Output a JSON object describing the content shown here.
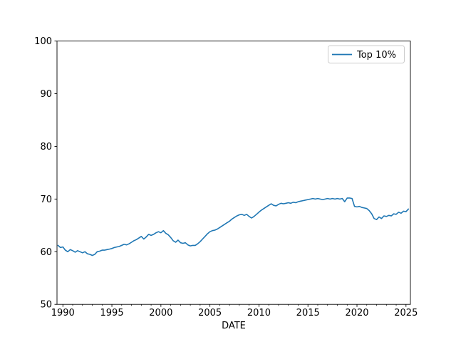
{
  "chart_data": {
    "type": "line",
    "title": "",
    "xlabel": "DATE",
    "ylabel": "",
    "xlim": [
      1989.4,
      2025.45
    ],
    "ylim": [
      50,
      100
    ],
    "x_ticks": [
      1990,
      1995,
      2000,
      2005,
      2010,
      2015,
      2020,
      2025
    ],
    "y_ticks": [
      50,
      60,
      70,
      80,
      90,
      100
    ],
    "x_minor_tick_step": 1,
    "grid": false,
    "legend_position": "upper right",
    "line_color": "#1f77b4",
    "axis_color": "#000000",
    "legend_border_color": "#cccccc",
    "background_color": "#ffffff",
    "series": [
      {
        "name": "Top 10%",
        "x": [
          1989.5,
          1989.75,
          1990.0,
          1990.25,
          1990.5,
          1990.75,
          1991.0,
          1991.25,
          1991.5,
          1991.75,
          1992.0,
          1992.25,
          1992.5,
          1992.75,
          1993.0,
          1993.25,
          1993.5,
          1993.75,
          1994.0,
          1994.25,
          1994.5,
          1994.75,
          1995.0,
          1995.25,
          1995.5,
          1995.75,
          1996.0,
          1996.25,
          1996.5,
          1996.75,
          1997.0,
          1997.25,
          1997.5,
          1997.75,
          1998.0,
          1998.25,
          1998.5,
          1998.75,
          1999.0,
          1999.25,
          1999.5,
          1999.75,
          2000.0,
          2000.25,
          2000.5,
          2000.75,
          2001.0,
          2001.25,
          2001.5,
          2001.75,
          2002.0,
          2002.25,
          2002.5,
          2002.75,
          2003.0,
          2003.25,
          2003.5,
          2003.75,
          2004.0,
          2004.25,
          2004.5,
          2004.75,
          2005.0,
          2005.25,
          2005.5,
          2005.75,
          2006.0,
          2006.25,
          2006.5,
          2006.75,
          2007.0,
          2007.25,
          2007.5,
          2007.75,
          2008.0,
          2008.25,
          2008.5,
          2008.75,
          2009.0,
          2009.25,
          2009.5,
          2009.75,
          2010.0,
          2010.25,
          2010.5,
          2010.75,
          2011.0,
          2011.25,
          2011.5,
          2011.75,
          2012.0,
          2012.25,
          2012.5,
          2012.75,
          2013.0,
          2013.25,
          2013.5,
          2013.75,
          2014.0,
          2014.25,
          2014.5,
          2014.75,
          2015.0,
          2015.25,
          2015.5,
          2015.75,
          2016.0,
          2016.25,
          2016.5,
          2016.75,
          2017.0,
          2017.25,
          2017.5,
          2017.75,
          2018.0,
          2018.25,
          2018.5,
          2018.75,
          2019.0,
          2019.25,
          2019.5,
          2019.75,
          2020.0,
          2020.25,
          2020.5,
          2020.75,
          2021.0,
          2021.25,
          2021.5,
          2021.75,
          2022.0,
          2022.25,
          2022.5,
          2022.75,
          2023.0,
          2023.25,
          2023.5,
          2023.75,
          2024.0,
          2024.25,
          2024.5,
          2024.75,
          2025.0,
          2025.25
        ],
        "values": [
          61.2,
          60.8,
          60.9,
          60.3,
          60.0,
          60.4,
          60.2,
          59.9,
          60.2,
          60.0,
          59.8,
          60.0,
          59.6,
          59.5,
          59.3,
          59.5,
          60.0,
          60.1,
          60.3,
          60.3,
          60.4,
          60.5,
          60.6,
          60.8,
          60.9,
          61.0,
          61.2,
          61.4,
          61.3,
          61.5,
          61.8,
          62.1,
          62.3,
          62.6,
          62.9,
          62.4,
          62.8,
          63.3,
          63.1,
          63.3,
          63.6,
          63.8,
          63.6,
          64.0,
          63.5,
          63.2,
          62.7,
          62.1,
          61.8,
          62.2,
          61.7,
          61.6,
          61.7,
          61.3,
          61.1,
          61.2,
          61.2,
          61.5,
          61.9,
          62.4,
          62.9,
          63.4,
          63.8,
          64.0,
          64.1,
          64.3,
          64.6,
          64.9,
          65.2,
          65.5,
          65.8,
          66.2,
          66.5,
          66.8,
          67.0,
          67.1,
          66.9,
          67.1,
          66.7,
          66.4,
          66.7,
          67.1,
          67.5,
          67.9,
          68.2,
          68.5,
          68.8,
          69.1,
          68.8,
          68.7,
          69.0,
          69.2,
          69.1,
          69.2,
          69.3,
          69.2,
          69.4,
          69.3,
          69.5,
          69.6,
          69.7,
          69.8,
          69.9,
          70.0,
          70.1,
          70.0,
          70.1,
          70.0,
          69.9,
          70.0,
          70.1,
          70.0,
          70.1,
          70.0,
          70.1,
          70.0,
          70.1,
          69.5,
          70.2,
          70.2,
          70.1,
          68.6,
          68.5,
          68.6,
          68.4,
          68.3,
          68.2,
          67.8,
          67.2,
          66.3,
          66.1,
          66.6,
          66.3,
          66.8,
          66.7,
          66.9,
          66.8,
          67.2,
          67.1,
          67.5,
          67.3,
          67.7,
          67.6,
          68.1
        ]
      }
    ]
  }
}
